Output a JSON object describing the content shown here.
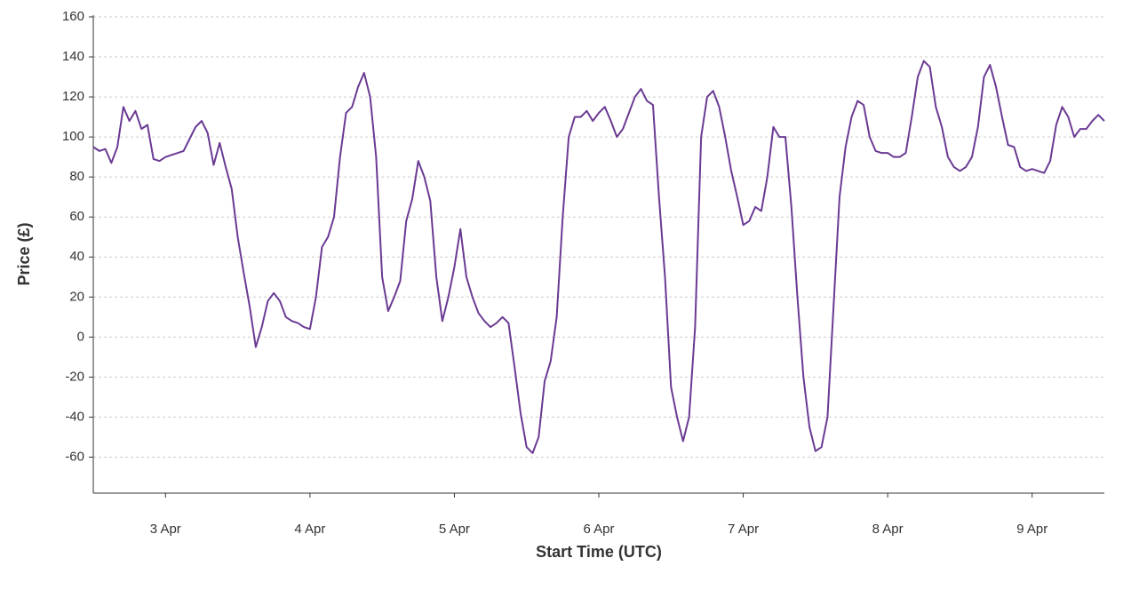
{
  "chart_data": {
    "type": "line",
    "x_label": "Start Time (UTC)",
    "y_label": "Price (£)",
    "categories": [
      null,
      null,
      null,
      null,
      null,
      null,
      null,
      null,
      null,
      null,
      null,
      null,
      "3 Apr",
      null,
      null,
      null,
      null,
      null,
      null,
      null,
      null,
      null,
      null,
      null,
      null,
      null,
      null,
      null,
      null,
      null,
      null,
      null,
      null,
      null,
      null,
      null,
      "4 Apr",
      null,
      null,
      null,
      null,
      null,
      null,
      null,
      null,
      null,
      null,
      null,
      null,
      null,
      null,
      null,
      null,
      null,
      null,
      null,
      null,
      null,
      null,
      null,
      "5 Apr",
      null,
      null,
      null,
      null,
      null,
      null,
      null,
      null,
      null,
      null,
      null,
      null,
      null,
      null,
      null,
      null,
      null,
      null,
      null,
      null,
      null,
      null,
      null,
      "6 Apr",
      null,
      null,
      null,
      null,
      null,
      null,
      null,
      null,
      null,
      null,
      null,
      null,
      null,
      null,
      null,
      null,
      null,
      null,
      null,
      null,
      null,
      null,
      null,
      "7 Apr",
      null,
      null,
      null,
      null,
      null,
      null,
      null,
      null,
      null,
      null,
      null,
      null,
      null,
      null,
      null,
      null,
      null,
      null,
      null,
      null,
      null,
      null,
      null,
      "8 Apr",
      null,
      null,
      null,
      null,
      null,
      null,
      null,
      null,
      null,
      null,
      null,
      null,
      null,
      null,
      null,
      null,
      null,
      null,
      null,
      null,
      null,
      null,
      null,
      "9 Apr",
      null,
      null,
      null,
      null,
      null,
      null,
      null,
      null,
      null,
      null,
      null,
      null
    ],
    "series": [
      {
        "name": "Price",
        "color": "#6a3a93",
        "values": [
          95,
          93,
          94,
          87,
          95,
          115,
          108,
          113,
          104,
          106,
          89,
          88,
          90,
          91,
          92,
          93,
          99,
          105,
          108,
          102,
          86,
          97,
          85,
          74,
          50,
          32,
          15,
          -5,
          5,
          18,
          22,
          18,
          10,
          8,
          7,
          5,
          4,
          20,
          45,
          50,
          60,
          90,
          112,
          115,
          125,
          132,
          120,
          90,
          30,
          13,
          20,
          28,
          58,
          69,
          88,
          80,
          68,
          30,
          8,
          20,
          35,
          54,
          30,
          20,
          12,
          8,
          5,
          7,
          10,
          7,
          -15,
          -38,
          -55,
          -58,
          -50,
          -22,
          -12,
          10,
          60,
          100,
          110,
          110,
          113,
          108,
          112,
          115,
          108,
          100,
          104,
          112,
          120,
          124,
          118,
          116,
          70,
          30,
          -25,
          -40,
          -52,
          -40,
          5,
          100,
          120,
          123,
          115,
          100,
          83,
          70,
          56,
          58,
          65,
          63,
          80,
          105,
          100,
          100,
          65,
          20,
          -20,
          -45,
          -57,
          -55,
          -40,
          15,
          70,
          95,
          110,
          118,
          116,
          100,
          93,
          92,
          92,
          90,
          90,
          92,
          110,
          130,
          138,
          135,
          115,
          105,
          90,
          85,
          83,
          85,
          90,
          105,
          130,
          136,
          125,
          110,
          96,
          95,
          85,
          83,
          84,
          83,
          82,
          88,
          106,
          115,
          110,
          100,
          104,
          104,
          108,
          111,
          108
        ]
      }
    ],
    "ylim": [
      -78,
      160
    ],
    "yticks": [
      -60,
      -40,
      -20,
      0,
      20,
      40,
      60,
      80,
      100,
      120,
      140,
      160
    ],
    "grid": true
  }
}
